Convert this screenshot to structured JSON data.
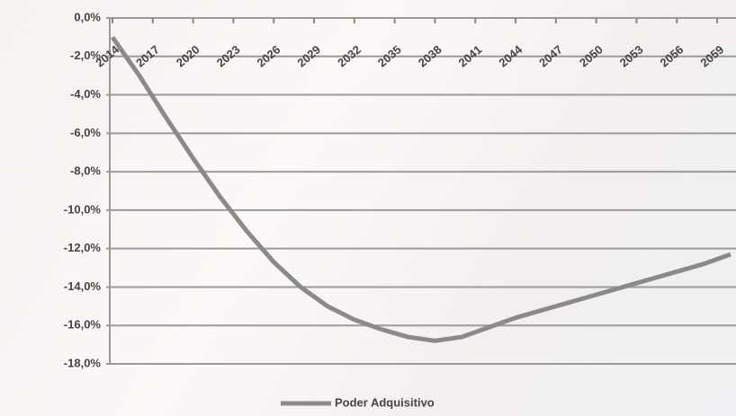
{
  "chart_data": {
    "type": "line",
    "x": [
      2014,
      2016,
      2018,
      2020,
      2022,
      2024,
      2026,
      2028,
      2030,
      2032,
      2034,
      2036,
      2038,
      2040,
      2042,
      2044,
      2046,
      2048,
      2050,
      2052,
      2054,
      2056,
      2058,
      2060
    ],
    "series": [
      {
        "name": "Poder Adquisitivo",
        "color": "#8a8a8a",
        "values": [
          -1.0,
          -3.0,
          -5.2,
          -7.3,
          -9.3,
          -11.1,
          -12.7,
          -14.0,
          -15.0,
          -15.7,
          -16.2,
          -16.6,
          -16.8,
          -16.6,
          -16.1,
          -15.6,
          -15.2,
          -14.8,
          -14.4,
          -14.0,
          -13.6,
          -13.2,
          -12.8,
          -12.3
        ]
      }
    ],
    "xlim": [
      2014,
      2060
    ],
    "xticks": [
      2014,
      2017,
      2020,
      2023,
      2026,
      2029,
      2032,
      2035,
      2038,
      2041,
      2044,
      2047,
      2050,
      2053,
      2056,
      2059
    ],
    "ylim": [
      -18,
      0
    ],
    "yticks": [
      {
        "value": 0,
        "label": "0,0%"
      },
      {
        "value": -2,
        "label": "-2,0%"
      },
      {
        "value": -4,
        "label": "-4,0%"
      },
      {
        "value": -6,
        "label": "-6,0%"
      },
      {
        "value": -8,
        "label": "-8,0%"
      },
      {
        "value": -10,
        "label": "-10,0%"
      },
      {
        "value": -12,
        "label": "-12,0%"
      },
      {
        "value": -14,
        "label": "-14,0%"
      },
      {
        "value": -16,
        "label": "-16,0%"
      },
      {
        "value": -18,
        "label": "-18,0%"
      }
    ],
    "grid": true,
    "legend": "bottom"
  }
}
